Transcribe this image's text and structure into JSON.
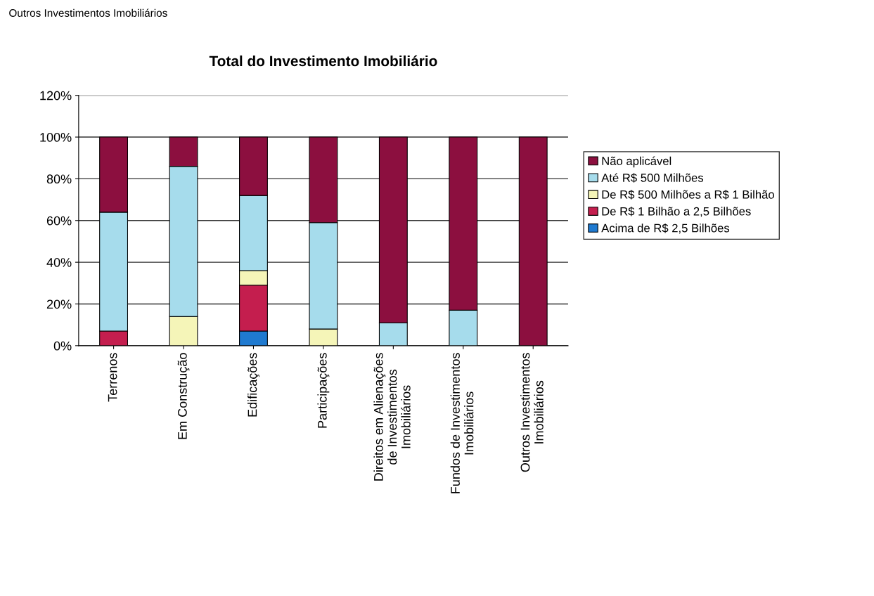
{
  "chart_data": {
    "type": "bar",
    "stacked": true,
    "title": "Total do Investimento Imobiliário",
    "annotations": [
      "Outros Investimentos Imobiliários"
    ],
    "categories": [
      "Terrenos",
      "Em Construção",
      "Edificações",
      "Participações",
      "Direitos em Alienações\nde Investimentos\nImobiliários",
      "Fundos de Investimentos\nImobiliários",
      "Outros Investimentos\nImobiliários"
    ],
    "series": [
      {
        "name": "Acima de R$ 2,5 Bilhões",
        "color": "#1f7ad0",
        "values": [
          null,
          null,
          7,
          null,
          null,
          null,
          null
        ]
      },
      {
        "name": "De R$ 1 Bilhão a 2,5 Bilhões",
        "color": "#c41e4e",
        "values": [
          7,
          null,
          22,
          null,
          null,
          null,
          null
        ]
      },
      {
        "name": "De R$ 500 Milhões a R$ 1 Bilhão",
        "color": "#f5f5b8",
        "values": [
          null,
          14,
          7,
          8,
          null,
          null,
          null
        ]
      },
      {
        "name": "Até R$ 500 Milhões",
        "color": "#a6dcec",
        "values": [
          57,
          72,
          36,
          51,
          11,
          17,
          null
        ]
      },
      {
        "name": "Não aplicável",
        "color": "#8c0f3f",
        "values": [
          36,
          14,
          28,
          41,
          89,
          83,
          100
        ]
      }
    ],
    "ylim": [
      0,
      120
    ],
    "yticks": [
      {
        "value": 0,
        "label": "0%"
      },
      {
        "value": 20,
        "label": "20%"
      },
      {
        "value": 40,
        "label": "40%"
      },
      {
        "value": 60,
        "label": "60%"
      },
      {
        "value": 80,
        "label": "80%"
      },
      {
        "value": 100,
        "label": "100%"
      },
      {
        "value": 120,
        "label": "120%"
      }
    ],
    "grid": "y",
    "legend": "right"
  }
}
